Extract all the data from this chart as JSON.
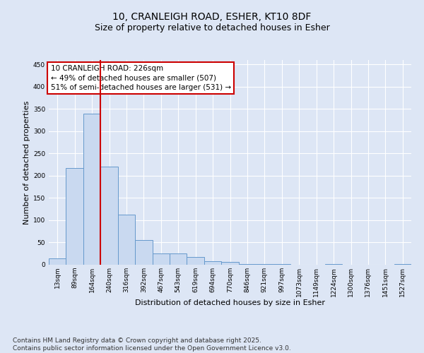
{
  "title_line1": "10, CRANLEIGH ROAD, ESHER, KT10 8DF",
  "title_line2": "Size of property relative to detached houses in Esher",
  "xlabel": "Distribution of detached houses by size in Esher",
  "ylabel": "Number of detached properties",
  "categories": [
    "13sqm",
    "89sqm",
    "164sqm",
    "240sqm",
    "316sqm",
    "392sqm",
    "467sqm",
    "543sqm",
    "619sqm",
    "694sqm",
    "770sqm",
    "846sqm",
    "921sqm",
    "997sqm",
    "1073sqm",
    "1149sqm",
    "1224sqm",
    "1300sqm",
    "1376sqm",
    "1451sqm",
    "1527sqm"
  ],
  "values": [
    15,
    217,
    340,
    221,
    112,
    55,
    26,
    25,
    17,
    8,
    6,
    2,
    1,
    1,
    0,
    0,
    1,
    0,
    0,
    0,
    2
  ],
  "bar_color": "#c9d9f0",
  "bar_edge_color": "#6699cc",
  "vline_x_index": 3,
  "vline_color": "#cc0000",
  "annotation_line1": "10 CRANLEIGH ROAD: 226sqm",
  "annotation_line2": "← 49% of detached houses are smaller (507)",
  "annotation_line3": "51% of semi-detached houses are larger (531) →",
  "annotation_box_color": "#cc0000",
  "ylim": [
    0,
    460
  ],
  "yticks": [
    0,
    50,
    100,
    150,
    200,
    250,
    300,
    350,
    400,
    450
  ],
  "footnote": "Contains HM Land Registry data © Crown copyright and database right 2025.\nContains public sector information licensed under the Open Government Licence v3.0.",
  "bg_color": "#dde6f5",
  "plot_bg_color": "#dde6f5",
  "grid_color": "#ffffff",
  "title_fontsize": 10,
  "subtitle_fontsize": 9,
  "label_fontsize": 8,
  "tick_fontsize": 6.5,
  "annot_fontsize": 7.5,
  "footnote_fontsize": 6.5
}
